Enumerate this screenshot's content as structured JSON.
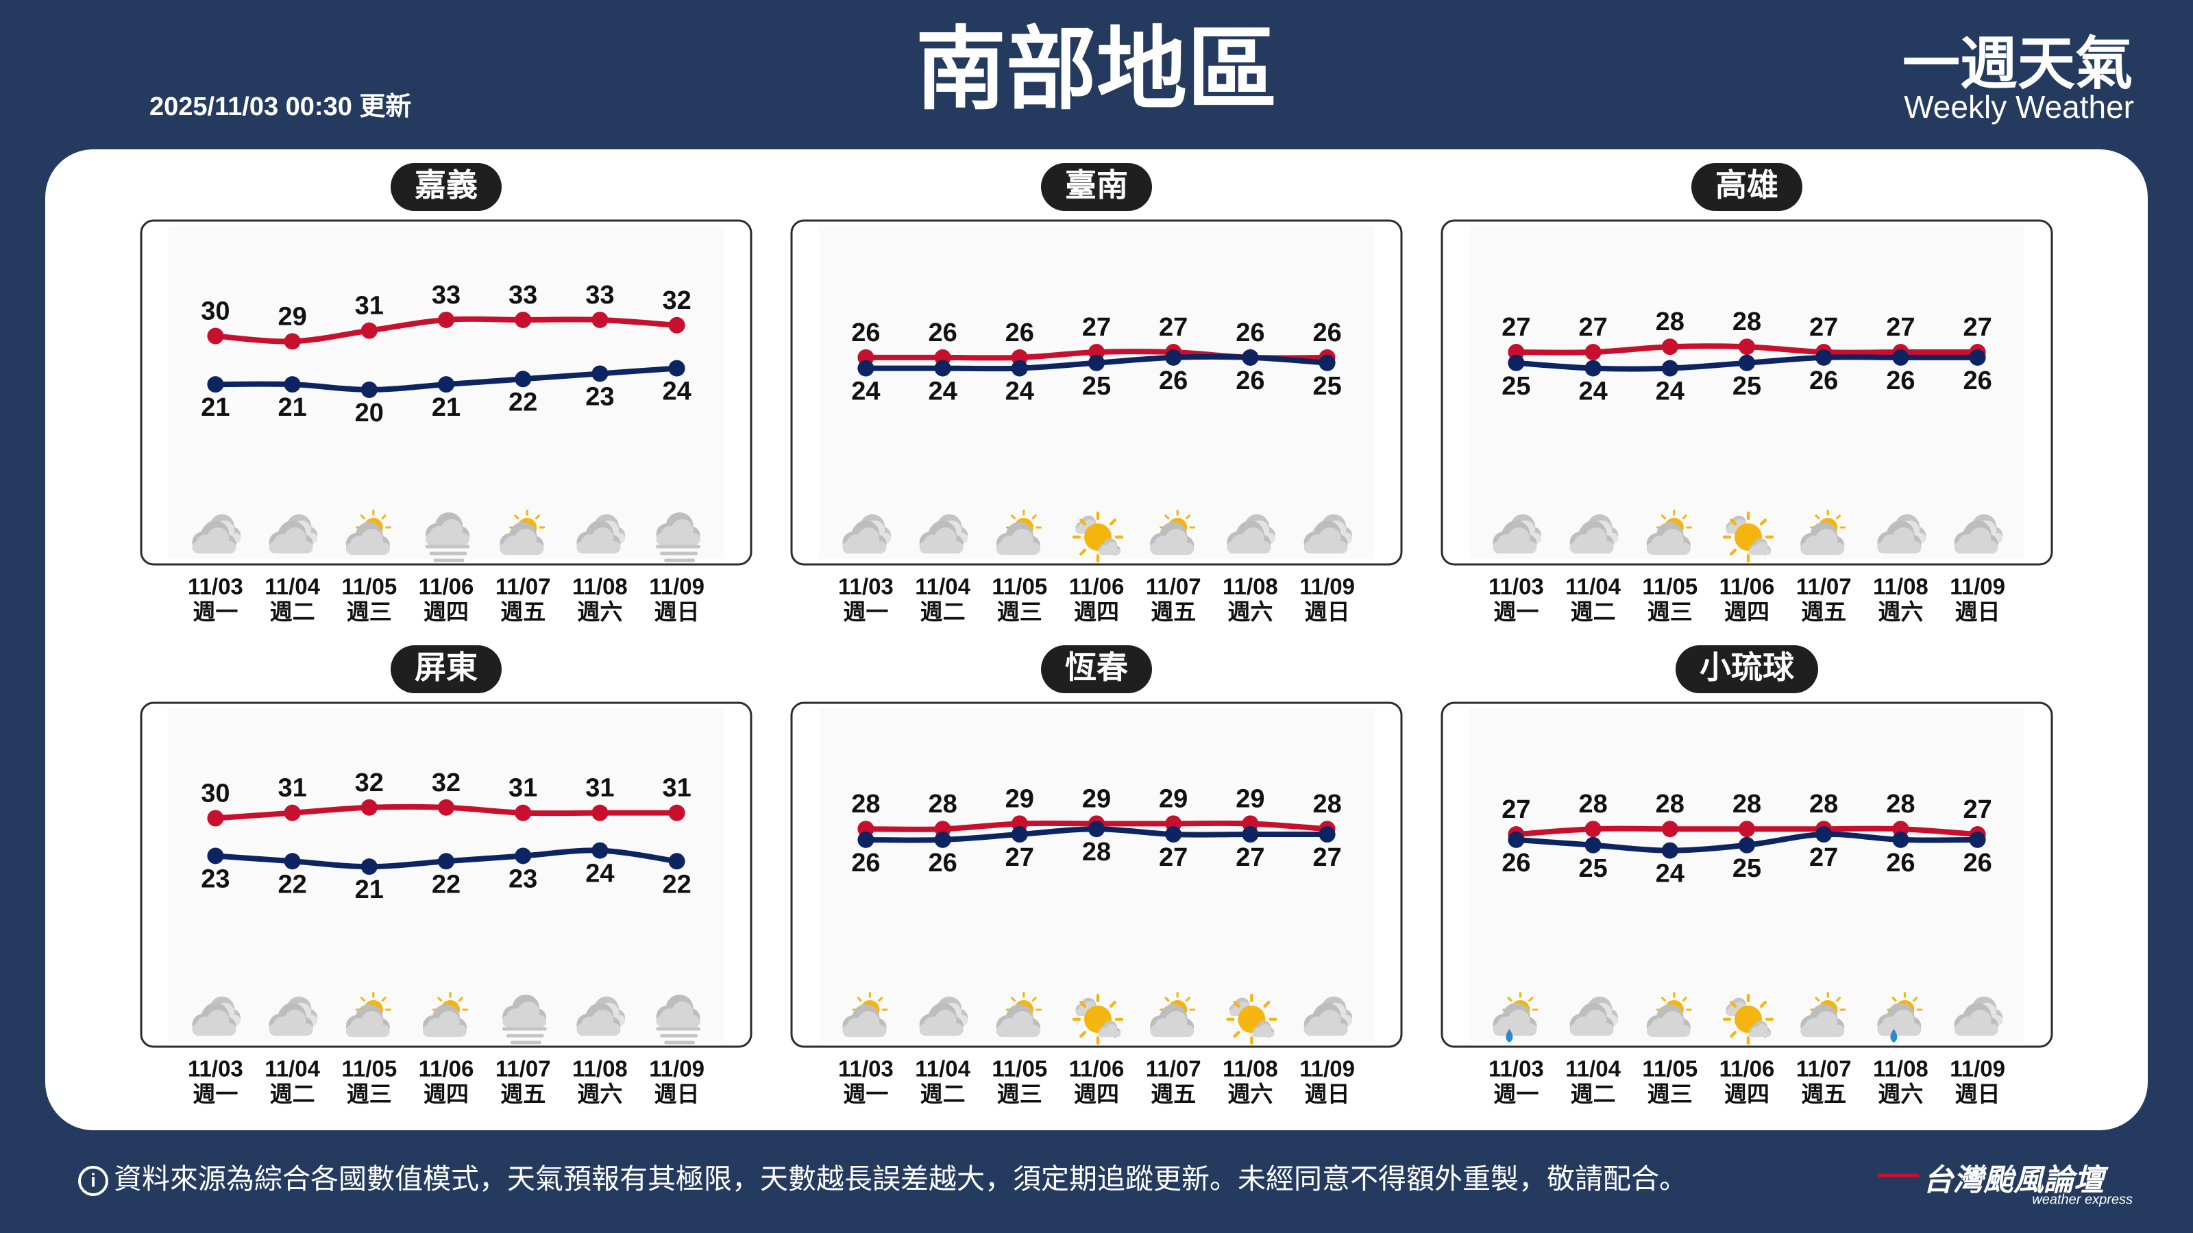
{
  "header": {
    "title": "南部地區",
    "updated": "2025/11/03 00:30 更新",
    "brand": "一週天氣",
    "brand_sub": "Weekly Weather"
  },
  "footer": {
    "note": "資料來源為綜合各國數值模式，天氣預報有其極限，天數越長誤差越大，須定期追蹤更新。未經同意不得額外重製，敬請配合。",
    "logo": "台灣颱風論壇",
    "logo_sub": "weather express"
  },
  "chart_data": [
    {
      "type": "line",
      "title": "嘉義",
      "categories": [
        "11/03",
        "11/04",
        "11/05",
        "11/06",
        "11/07",
        "11/08",
        "11/09"
      ],
      "weekdays": [
        "週一",
        "週二",
        "週三",
        "週四",
        "週五",
        "週六",
        "週日"
      ],
      "weather": [
        "cloudy",
        "cloudy",
        "partly-sunny",
        "fog",
        "partly-sunny",
        "cloudy",
        "fog"
      ],
      "ylim": [
        0,
        40
      ],
      "series": [
        {
          "color": "#c8102e",
          "values": [
            30,
            29,
            31,
            33,
            33,
            33,
            32
          ]
        },
        {
          "color": "#0c2461",
          "values": [
            21,
            21,
            20,
            21,
            22,
            23,
            24
          ]
        }
      ]
    },
    {
      "type": "line",
      "title": "臺南",
      "categories": [
        "11/03",
        "11/04",
        "11/05",
        "11/06",
        "11/07",
        "11/08",
        "11/09"
      ],
      "weekdays": [
        "週一",
        "週二",
        "週三",
        "週四",
        "週五",
        "週六",
        "週日"
      ],
      "weather": [
        "cloudy",
        "cloudy",
        "partly-sunny",
        "sunny",
        "partly-sunny",
        "cloudy",
        "cloudy"
      ],
      "ylim": [
        0,
        40
      ],
      "series": [
        {
          "color": "#c8102e",
          "values": [
            26,
            26,
            26,
            27,
            27,
            26,
            26
          ]
        },
        {
          "color": "#0c2461",
          "values": [
            24,
            24,
            24,
            25,
            26,
            26,
            25
          ]
        }
      ]
    },
    {
      "type": "line",
      "title": "高雄",
      "categories": [
        "11/03",
        "11/04",
        "11/05",
        "11/06",
        "11/07",
        "11/08",
        "11/09"
      ],
      "weekdays": [
        "週一",
        "週二",
        "週三",
        "週四",
        "週五",
        "週六",
        "週日"
      ],
      "weather": [
        "cloudy",
        "cloudy",
        "partly-sunny",
        "sunny",
        "partly-sunny",
        "cloudy",
        "cloudy"
      ],
      "ylim": [
        0,
        40
      ],
      "series": [
        {
          "color": "#c8102e",
          "values": [
            27,
            27,
            28,
            28,
            27,
            27,
            27
          ]
        },
        {
          "color": "#0c2461",
          "values": [
            25,
            24,
            24,
            25,
            26,
            26,
            26
          ]
        }
      ]
    },
    {
      "type": "line",
      "title": "屏東",
      "categories": [
        "11/03",
        "11/04",
        "11/05",
        "11/06",
        "11/07",
        "11/08",
        "11/09"
      ],
      "weekdays": [
        "週一",
        "週二",
        "週三",
        "週四",
        "週五",
        "週六",
        "週日"
      ],
      "weather": [
        "cloudy",
        "cloudy",
        "partly-sunny",
        "partly-sunny",
        "fog",
        "cloudy",
        "fog"
      ],
      "ylim": [
        0,
        40
      ],
      "series": [
        {
          "color": "#c8102e",
          "values": [
            30,
            31,
            32,
            32,
            31,
            31,
            31
          ]
        },
        {
          "color": "#0c2461",
          "values": [
            23,
            22,
            21,
            22,
            23,
            24,
            22
          ]
        }
      ]
    },
    {
      "type": "line",
      "title": "恆春",
      "categories": [
        "11/03",
        "11/04",
        "11/05",
        "11/06",
        "11/07",
        "11/08",
        "11/09"
      ],
      "weekdays": [
        "週一",
        "週二",
        "週三",
        "週四",
        "週五",
        "週六",
        "週日"
      ],
      "weather": [
        "partly-sunny",
        "cloudy",
        "partly-sunny",
        "sunny",
        "partly-sunny",
        "sunny",
        "cloudy"
      ],
      "ylim": [
        0,
        40
      ],
      "series": [
        {
          "color": "#c8102e",
          "values": [
            28,
            28,
            29,
            29,
            29,
            29,
            28
          ]
        },
        {
          "color": "#0c2461",
          "values": [
            26,
            26,
            27,
            28,
            27,
            27,
            27
          ]
        }
      ]
    },
    {
      "type": "line",
      "title": "小琉球",
      "categories": [
        "11/03",
        "11/04",
        "11/05",
        "11/06",
        "11/07",
        "11/08",
        "11/09"
      ],
      "weekdays": [
        "週一",
        "週二",
        "週三",
        "週四",
        "週五",
        "週六",
        "週日"
      ],
      "weather": [
        "rain",
        "cloudy",
        "partly-sunny",
        "sunny",
        "partly-sunny",
        "rain",
        "cloudy"
      ],
      "ylim": [
        0,
        40
      ],
      "series": [
        {
          "color": "#c8102e",
          "values": [
            27,
            28,
            28,
            28,
            28,
            28,
            27
          ]
        },
        {
          "color": "#0c2461",
          "values": [
            26,
            25,
            24,
            25,
            27,
            26,
            26
          ]
        }
      ]
    }
  ]
}
